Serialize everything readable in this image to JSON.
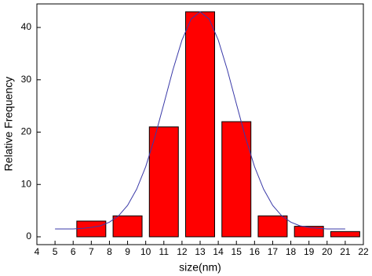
{
  "chart_data": {
    "type": "bar",
    "x_label": "size(nm)",
    "y_label": "Relative Frequency",
    "x": [
      7,
      9,
      11,
      13,
      15,
      17,
      19,
      21
    ],
    "values": [
      3,
      4,
      21,
      43,
      22,
      4,
      2,
      1
    ],
    "color": "#ff0000",
    "edge_color": "#000000",
    "fit": {
      "type": "line",
      "color": "#3a3aa8",
      "x": [
        5,
        5.5,
        6,
        6.5,
        7,
        7.5,
        8,
        8.5,
        9,
        9.5,
        10,
        10.5,
        11,
        11.5,
        12,
        12.5,
        13,
        13.5,
        14,
        14.5,
        15,
        15.5,
        16,
        16.5,
        17,
        17.5,
        18,
        18.5,
        19,
        19.5,
        20,
        20.5,
        21
      ],
      "values": [
        1.5,
        1.5,
        1.5,
        1.6,
        1.8,
        2.1,
        2.8,
        4.0,
        6.0,
        9.1,
        13.4,
        19.0,
        25.4,
        31.9,
        37.6,
        41.6,
        43,
        41.6,
        37.6,
        31.9,
        25.4,
        19.0,
        13.4,
        9.1,
        6.0,
        4.0,
        2.8,
        2.1,
        1.8,
        1.6,
        1.5,
        1.5,
        1.5
      ]
    },
    "xlim": [
      4,
      22
    ],
    "ylim": [
      -1.5,
      44.5
    ],
    "xticks": [
      4,
      5,
      6,
      7,
      8,
      9,
      10,
      11,
      12,
      13,
      14,
      15,
      16,
      17,
      18,
      19,
      20,
      21,
      22
    ],
    "yticks": [
      0,
      10,
      20,
      30,
      40
    ],
    "grid": false
  }
}
